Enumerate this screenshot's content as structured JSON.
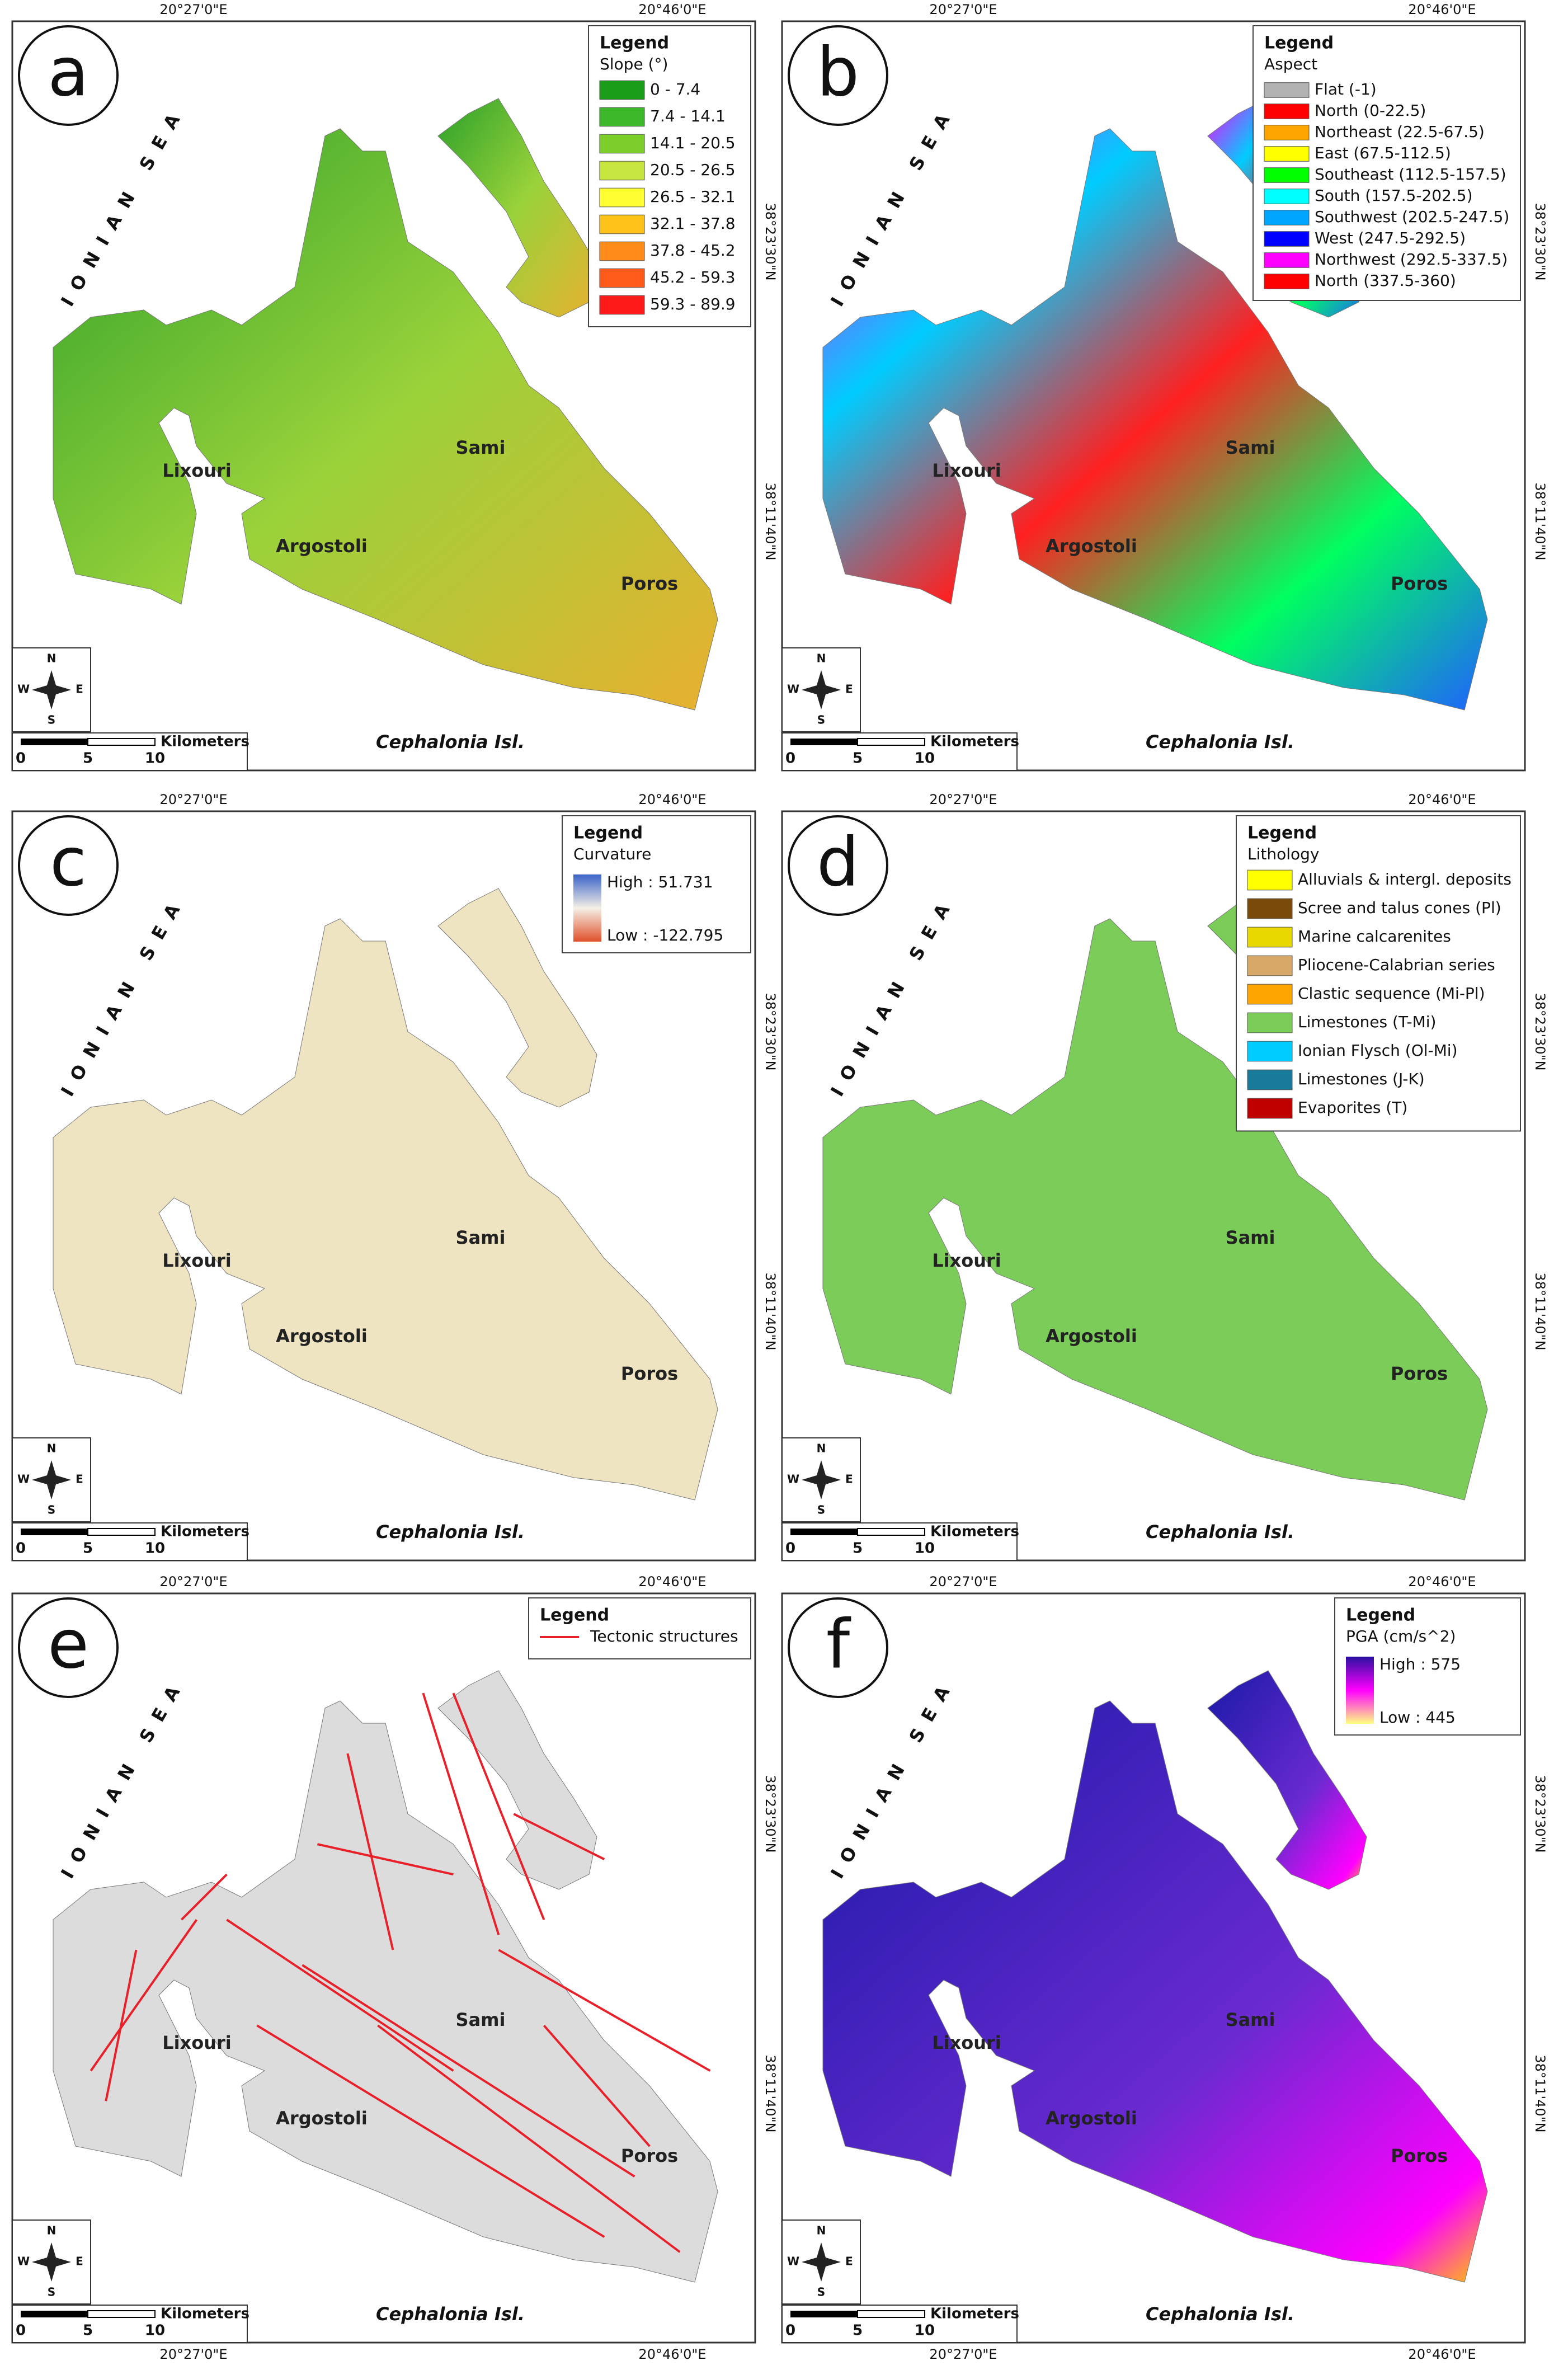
{
  "map": {
    "sea_label": "IONIAN SEA",
    "places": [
      "Lixouri",
      "Argostoli",
      "Sami",
      "Poros"
    ],
    "island_label": "Cephalonia Isl.",
    "scale_unit": "Kilometers",
    "scale_ticks": [
      "0",
      "5",
      "10"
    ],
    "compass": [
      "N",
      "E",
      "S",
      "W"
    ],
    "lon_labels": [
      "20°27'0\"E",
      "20°46'0\"E"
    ],
    "lat_labels": [
      "38°23'30\"N",
      "38°11'40\"N"
    ]
  },
  "panels": [
    {
      "label": "a",
      "legend": {
        "title": "Legend",
        "subtitle": "Slope (°)",
        "items": [
          {
            "label": "0 - 7.4",
            "color": "#1a9e1a"
          },
          {
            "label": "7.4 - 14.1",
            "color": "#3cb82a"
          },
          {
            "label": "14.1 - 20.5",
            "color": "#7ccf2a"
          },
          {
            "label": "20.5 - 26.5",
            "color": "#c8e640"
          },
          {
            "label": "26.5 - 32.1",
            "color": "#ffff33"
          },
          {
            "label": "32.1 - 37.8",
            "color": "#ffc21a"
          },
          {
            "label": "37.8 - 45.2",
            "color": "#ff8c1a"
          },
          {
            "label": "45.2 - 59.3",
            "color": "#ff5a1a"
          },
          {
            "label": "59.3 - 89.9",
            "color": "#ff1a1a"
          }
        ]
      }
    },
    {
      "label": "b",
      "legend": {
        "title": "Legend",
        "subtitle": "Aspect",
        "items": [
          {
            "label": "Flat (-1)",
            "color": "#b2b2b2"
          },
          {
            "label": "North (0-22.5)",
            "color": "#ff0000"
          },
          {
            "label": "Northeast (22.5-67.5)",
            "color": "#ffa500"
          },
          {
            "label": "East (67.5-112.5)",
            "color": "#ffff00"
          },
          {
            "label": "Southeast (112.5-157.5)",
            "color": "#00ff00"
          },
          {
            "label": "South (157.5-202.5)",
            "color": "#00ffff"
          },
          {
            "label": "Southwest (202.5-247.5)",
            "color": "#00a5ff"
          },
          {
            "label": "West (247.5-292.5)",
            "color": "#0000ff"
          },
          {
            "label": "Northwest (292.5-337.5)",
            "color": "#ff00ff"
          },
          {
            "label": "North (337.5-360)",
            "color": "#ff0000"
          }
        ]
      }
    },
    {
      "label": "c",
      "legend": {
        "title": "Legend",
        "subtitle": "Curvature",
        "high": "High : 51.731",
        "low": "Low : -122.795",
        "ramp": [
          "#3a62c8",
          "#f5f0e6",
          "#e0502a"
        ]
      }
    },
    {
      "label": "d",
      "legend": {
        "title": "Legend",
        "subtitle": "Lithology",
        "items": [
          {
            "label": "Alluvials & intergl. deposits",
            "color": "#ffff00"
          },
          {
            "label": "Scree and talus cones (Pl)",
            "color": "#7a4a0a"
          },
          {
            "label": "Marine calcarenites",
            "color": "#e8d800"
          },
          {
            "label": "Pliocene-Calabrian series",
            "color": "#d8a868"
          },
          {
            "label": "Clastic sequence (Mi-Pl)",
            "color": "#ffa500"
          },
          {
            "label": "Limestones (T-Mi)",
            "color": "#7ccc5a"
          },
          {
            "label": "Ionian Flysch (Ol-Mi)",
            "color": "#00ccff"
          },
          {
            "label": "Limestones (J-K)",
            "color": "#1a7a9a"
          },
          {
            "label": "Evaporites (T)",
            "color": "#c00000"
          }
        ]
      }
    },
    {
      "label": "e",
      "legend": {
        "title": "Legend",
        "items": [
          {
            "label": "Tectonic structures",
            "color": "#e8202a"
          }
        ]
      }
    },
    {
      "label": "f",
      "legend": {
        "title": "Legend",
        "subtitle": "PGA (cm/s^2)",
        "high": "High : 575",
        "low": "Low : 445",
        "ramp": [
          "#2a10a0",
          "#ff00ff",
          "#ffff80"
        ]
      }
    }
  ]
}
